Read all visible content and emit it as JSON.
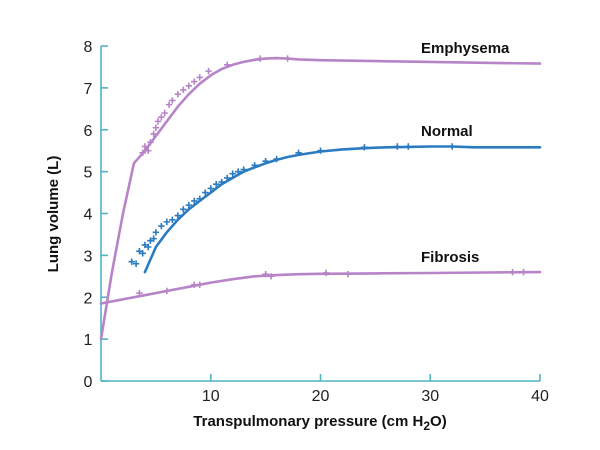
{
  "chart_data": {
    "type": "line",
    "title": "",
    "xlabel": "Transpulmonary pressure (cm H",
    "xlabel_sub": "2",
    "xlabel_end": "O)",
    "ylabel": "Lung volume (L)",
    "xlim": [
      0,
      40
    ],
    "ylim": [
      0,
      8
    ],
    "xticks": [
      10,
      20,
      30,
      40
    ],
    "yticks": [
      0,
      1,
      2,
      3,
      4,
      5,
      6,
      7,
      8
    ],
    "grid": false,
    "axis_color": "#4fb3c3",
    "series": [
      {
        "name": "Emphysema",
        "color": "#b784c8",
        "x": [
          0,
          1,
          2,
          3,
          4,
          5,
          6,
          7,
          8,
          9,
          10,
          11,
          12,
          13,
          14,
          15,
          16,
          17,
          18,
          20,
          25,
          30,
          35,
          40
        ],
        "y": [
          1.0,
          2.6,
          4.0,
          5.2,
          5.5,
          5.85,
          6.2,
          6.55,
          6.85,
          7.1,
          7.3,
          7.45,
          7.55,
          7.62,
          7.67,
          7.7,
          7.71,
          7.7,
          7.68,
          7.66,
          7.64,
          7.62,
          7.6,
          7.58
        ],
        "points": [
          [
            3.8,
            5.45
          ],
          [
            4.0,
            5.6
          ],
          [
            4.3,
            5.5
          ],
          [
            4.5,
            5.7
          ],
          [
            4.8,
            5.9
          ],
          [
            5.0,
            6.05
          ],
          [
            5.2,
            6.2
          ],
          [
            5.5,
            6.3
          ],
          [
            5.8,
            6.4
          ],
          [
            6.2,
            6.6
          ],
          [
            6.5,
            6.7
          ],
          [
            7.0,
            6.85
          ],
          [
            7.5,
            6.95
          ],
          [
            8.0,
            7.05
          ],
          [
            8.5,
            7.15
          ],
          [
            9.0,
            7.25
          ],
          [
            9.8,
            7.4
          ],
          [
            11.5,
            7.55
          ],
          [
            14.5,
            7.7
          ],
          [
            17.0,
            7.7
          ]
        ]
      },
      {
        "name": "Normal",
        "color": "#2b7bc0",
        "x": [
          4,
          5,
          6,
          7,
          8,
          9,
          10,
          11,
          12,
          13,
          14,
          15,
          16,
          17,
          18,
          20,
          22,
          24,
          26,
          28,
          30,
          32,
          34,
          36,
          38,
          40
        ],
        "y": [
          2.6,
          3.2,
          3.55,
          3.85,
          4.1,
          4.3,
          4.5,
          4.7,
          4.85,
          5.0,
          5.1,
          5.2,
          5.28,
          5.35,
          5.4,
          5.48,
          5.53,
          5.56,
          5.58,
          5.59,
          5.6,
          5.6,
          5.58,
          5.58,
          5.58,
          5.58
        ],
        "points": [
          [
            2.8,
            2.85
          ],
          [
            3.2,
            2.8
          ],
          [
            3.5,
            3.1
          ],
          [
            3.8,
            3.05
          ],
          [
            4.0,
            3.25
          ],
          [
            4.3,
            3.2
          ],
          [
            4.5,
            3.35
          ],
          [
            4.8,
            3.4
          ],
          [
            5.0,
            3.55
          ],
          [
            5.5,
            3.7
          ],
          [
            6.0,
            3.8
          ],
          [
            6.5,
            3.85
          ],
          [
            7.0,
            3.95
          ],
          [
            7.5,
            4.1
          ],
          [
            8.0,
            4.2
          ],
          [
            8.5,
            4.3
          ],
          [
            9.0,
            4.35
          ],
          [
            9.5,
            4.5
          ],
          [
            10.0,
            4.6
          ],
          [
            10.5,
            4.7
          ],
          [
            11.0,
            4.75
          ],
          [
            11.5,
            4.85
          ],
          [
            12.0,
            4.95
          ],
          [
            12.5,
            5.0
          ],
          [
            13.0,
            5.05
          ],
          [
            14.0,
            5.15
          ],
          [
            15.0,
            5.25
          ],
          [
            16.0,
            5.3
          ],
          [
            18.0,
            5.45
          ],
          [
            20.0,
            5.5
          ],
          [
            24.0,
            5.58
          ],
          [
            27.0,
            5.6
          ],
          [
            28.0,
            5.6
          ],
          [
            32.0,
            5.6
          ]
        ]
      },
      {
        "name": "Fibrosis",
        "color": "#b784c8",
        "x": [
          0,
          2,
          4,
          6,
          8,
          10,
          12,
          14,
          16,
          18,
          20,
          25,
          30,
          35,
          40
        ],
        "y": [
          1.85,
          1.95,
          2.05,
          2.15,
          2.25,
          2.35,
          2.43,
          2.5,
          2.53,
          2.55,
          2.56,
          2.57,
          2.58,
          2.59,
          2.6
        ],
        "points": [
          [
            3.5,
            2.1
          ],
          [
            6.0,
            2.15
          ],
          [
            8.5,
            2.3
          ],
          [
            9.0,
            2.3
          ],
          [
            15.0,
            2.55
          ],
          [
            15.5,
            2.5
          ],
          [
            20.5,
            2.58
          ],
          [
            22.5,
            2.55
          ],
          [
            37.5,
            2.6
          ],
          [
            38.5,
            2.6
          ]
        ]
      }
    ]
  }
}
